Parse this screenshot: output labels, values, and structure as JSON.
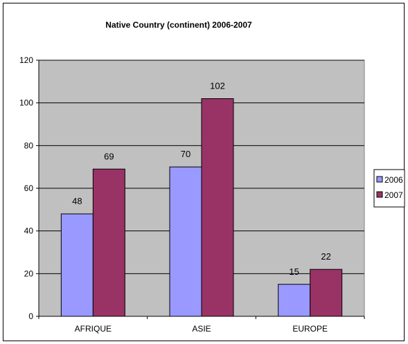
{
  "chart_data": {
    "type": "bar",
    "title": "Native Country (continent) 2006-2007",
    "xlabel": "",
    "ylabel": "",
    "categories": [
      "AFRIQUE",
      "ASIE",
      "EUROPE"
    ],
    "series": [
      {
        "name": "2006",
        "values": [
          48,
          70,
          15
        ],
        "color": "#9999ff"
      },
      {
        "name": "2007",
        "values": [
          69,
          102,
          22
        ],
        "color": "#993366"
      }
    ],
    "ylim": [
      0,
      120
    ],
    "yticks": [
      0,
      20,
      40,
      60,
      80,
      100,
      120
    ],
    "grid": true,
    "legend": "right",
    "plot_background": "#c0c0c0"
  }
}
